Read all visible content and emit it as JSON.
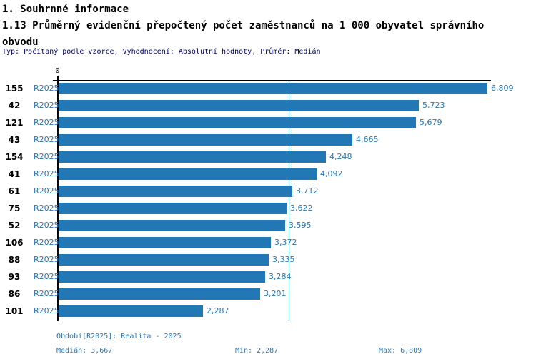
{
  "header": {
    "title": "1. Souhrnné informace",
    "subtitle": "1.13 Průměrný evidenční přepočtený počet zaměstnanců na 1 000 obyvatel správního obvodu",
    "meta": "Typ: Počítaný podle vzorce, Vyhodnocení: Absolutní hodnoty, Průměr: Medián"
  },
  "chart_data": {
    "type": "bar",
    "orientation": "horizontal",
    "title": "1.13 Průměrný evidenční přepočtený počet zaměstnanců na 1 000 obyvatel správního obvodu",
    "categories": [
      "155",
      "42",
      "121",
      "43",
      "154",
      "41",
      "61",
      "75",
      "52",
      "106",
      "88",
      "93",
      "86",
      "101"
    ],
    "series_label": "R2025",
    "values": [
      6809,
      5723,
      5679,
      4665,
      4248,
      4092,
      3712,
      3622,
      3595,
      3372,
      3335,
      3284,
      3201,
      2287
    ],
    "value_labels": [
      "6,809",
      "5,723",
      "5,679",
      "4,665",
      "4,248",
      "4,092",
      "3,712",
      "3,622",
      "3,595",
      "3,372",
      "3,335",
      "3,284",
      "3,201",
      "2,287"
    ],
    "xlim": [
      0,
      6809
    ],
    "zero_label": "0",
    "median_value": 3667,
    "median_line": true,
    "grid": false,
    "legend": false
  },
  "footer": {
    "period": "Období[R2025]: Realita - 2025",
    "median": "Medián: 3,667",
    "min": "Min: 2,287",
    "max": "Max: 6,809"
  },
  "colors": {
    "bar": "#2277b5",
    "blue_text": "#2878b5",
    "meta_text": "#000066",
    "axis": "#000000",
    "background": "#ffffff"
  }
}
